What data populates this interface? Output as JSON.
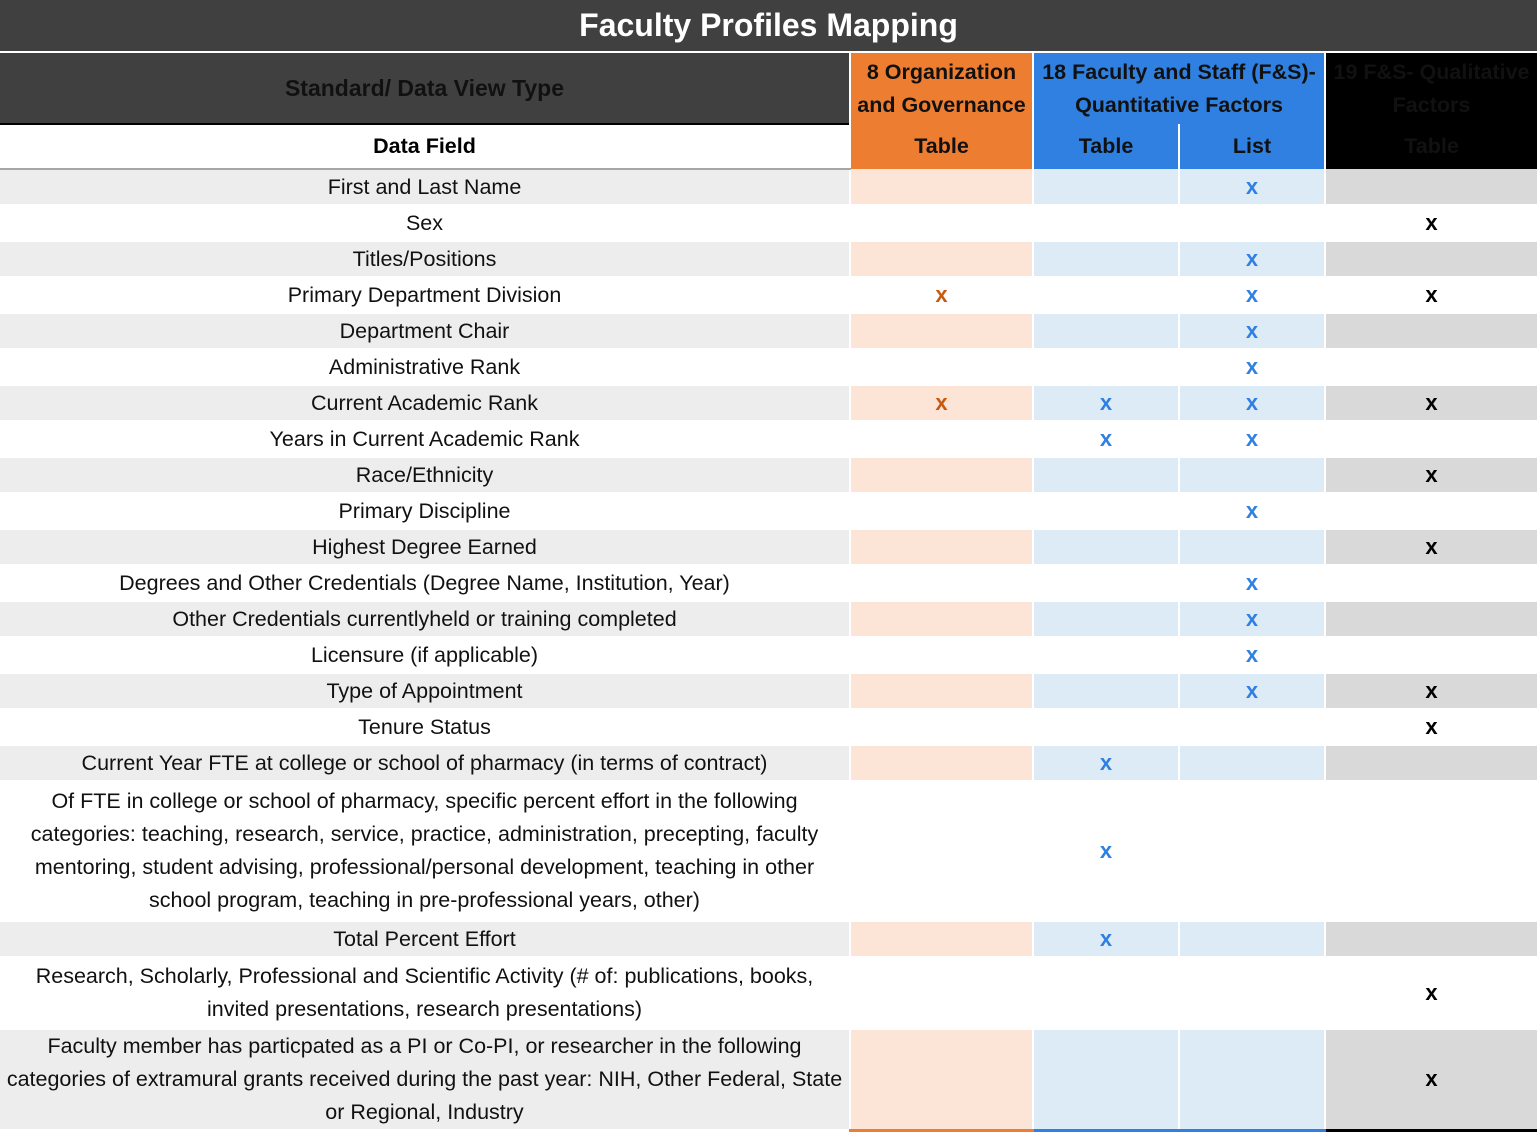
{
  "title": "Faculty Profiles Mapping",
  "header": {
    "standard_label": "Standard/ Data View Type",
    "data_field_label": "Data Field",
    "col_org": "8 Organization and Governance",
    "col_fs": "18 Faculty and Staff (F&S)- Quantitative Factors",
    "col_qual": "19 F&S- Qualitative Factors",
    "view_org": "Table",
    "view_fs_table": "Table",
    "view_fs_list": "List",
    "view_qual": "Table"
  },
  "colors": {
    "org": "#ed7d31",
    "fs": "#2f80e0",
    "qual": "#000000",
    "title_bg": "#404040"
  },
  "rows": [
    {
      "field": "First and Last Name",
      "org": "",
      "fs_table": "",
      "fs_list": "x",
      "qual": ""
    },
    {
      "field": "Sex",
      "org": "",
      "fs_table": "",
      "fs_list": "",
      "qual": "x"
    },
    {
      "field": "Titles/Positions",
      "org": "",
      "fs_table": "",
      "fs_list": "x",
      "qual": ""
    },
    {
      "field": "Primary Department Division",
      "org": "x",
      "fs_table": "",
      "fs_list": "x",
      "qual": "x"
    },
    {
      "field": "Department Chair",
      "org": "",
      "fs_table": "",
      "fs_list": "x",
      "qual": ""
    },
    {
      "field": "Administrative Rank",
      "org": "",
      "fs_table": "",
      "fs_list": "x",
      "qual": ""
    },
    {
      "field": "Current Academic Rank",
      "org": "x",
      "fs_table": "x",
      "fs_list": "x",
      "qual": "x"
    },
    {
      "field": "Years in Current Academic Rank",
      "org": "",
      "fs_table": "x",
      "fs_list": "x",
      "qual": ""
    },
    {
      "field": "Race/Ethnicity",
      "org": "",
      "fs_table": "",
      "fs_list": "",
      "qual": "x"
    },
    {
      "field": "Primary Discipline",
      "org": "",
      "fs_table": "",
      "fs_list": "x",
      "qual": ""
    },
    {
      "field": "Highest Degree Earned",
      "org": "",
      "fs_table": "",
      "fs_list": "",
      "qual": "x"
    },
    {
      "field": "Degrees and Other Credentials (Degree Name, Institution, Year)",
      "org": "",
      "fs_table": "",
      "fs_list": "x",
      "qual": ""
    },
    {
      "field": "Other Credentials currentlyheld or training completed",
      "org": "",
      "fs_table": "",
      "fs_list": "x",
      "qual": ""
    },
    {
      "field": "Licensure (if applicable)",
      "org": "",
      "fs_table": "",
      "fs_list": "x",
      "qual": ""
    },
    {
      "field": "Type of Appointment",
      "org": "",
      "fs_table": "",
      "fs_list": "x",
      "qual": "x"
    },
    {
      "field": "Tenure Status",
      "org": "",
      "fs_table": "",
      "fs_list": "",
      "qual": "x"
    },
    {
      "field": "Current Year FTE at college or school of pharmacy (in terms of contract)",
      "org": "",
      "fs_table": "x",
      "fs_list": "",
      "qual": ""
    },
    {
      "field": "Of FTE in college or school of pharmacy, specific percent effort in the following categories: teaching, research, service, practice, administration, precepting, faculty mentoring, student advising, professional/personal development, teaching in other school program, teaching in pre-professional years, other)",
      "org": "",
      "fs_table": "x",
      "fs_list": "",
      "qual": ""
    },
    {
      "field": "Total Percent Effort",
      "org": "",
      "fs_table": "x",
      "fs_list": "",
      "qual": ""
    },
    {
      "field": "Research, Scholarly, Professional and Scientific Activity (# of: publications, books, invited presentations, research presentations)",
      "org": "",
      "fs_table": "",
      "fs_list": "",
      "qual": "x"
    },
    {
      "field": "Faculty member has particpated as a PI or Co-PI, or researcher in the following categories  of extramural grants received during the past year: NIH, Other Federal, State or Regional, Industry",
      "org": "",
      "fs_table": "",
      "fs_list": "",
      "qual": "x"
    }
  ]
}
